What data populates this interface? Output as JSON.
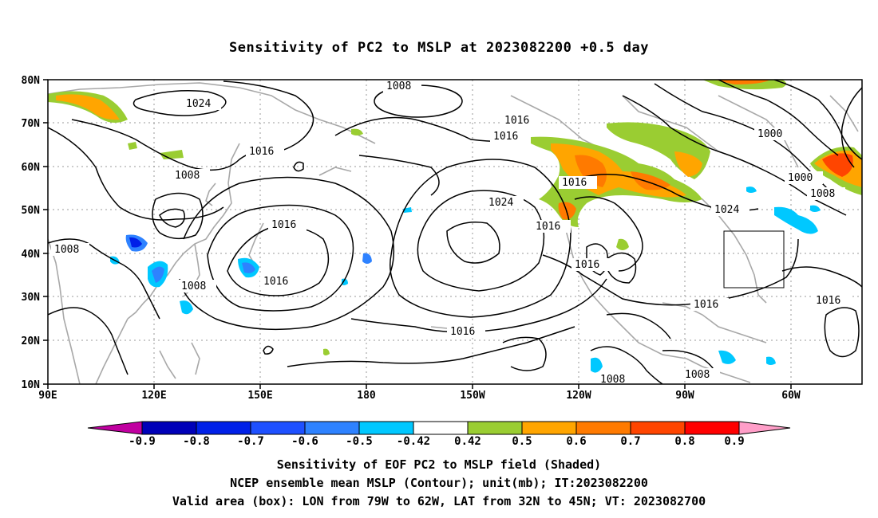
{
  "title": "Sensitivity of PC2 to MSLP at 2023082200 +0.5 day",
  "lat_labels": [
    "80N",
    "70N",
    "60N",
    "50N",
    "40N",
    "30N",
    "20N",
    "10N"
  ],
  "lon_labels": [
    "90E",
    "120E",
    "150E",
    "180",
    "150W",
    "120W",
    "90W",
    "60W"
  ],
  "contour_labels": [
    "1008",
    "1024",
    "1016",
    "1016",
    "1016",
    "1000",
    "1000",
    "1008",
    "1008",
    "1016",
    "1024",
    "1024",
    "1008",
    "1016",
    "1016",
    "1008",
    "1016",
    "1016",
    "1016",
    "1008",
    "1008",
    "1016"
  ],
  "colorbar": {
    "labels": [
      "-0.9",
      "-0.8",
      "-0.7",
      "-0.6",
      "-0.5",
      "-0.42",
      "0.42",
      "0.5",
      "0.6",
      "0.7",
      "0.8",
      "0.9"
    ],
    "colors": [
      "#c000a0",
      "#0000b8",
      "#0020e8",
      "#1e50ff",
      "#2e82ff",
      "#00c8ff",
      "#ffffff",
      "#9acd32",
      "#ffa500",
      "#ff7a00",
      "#ff4500",
      "#ff0000",
      "#ff9ec8"
    ]
  },
  "captions": [
    "Sensitivity of EOF PC2 to MSLP field (Shaded)",
    "NCEP ensemble mean MSLP (Contour); unit(mb); IT:2023082200",
    "Valid area (box): LON from 79W to 62W, LAT from 32N to 45N; VT: 2023082700"
  ],
  "colors": {
    "contour": "#000000",
    "coast": "#a8a8a8",
    "grid": "#999999"
  },
  "map_data": {
    "type": "contour-map",
    "lon_range": [
      "90E",
      "50W"
    ],
    "lat_range": [
      "10N",
      "80N"
    ],
    "valid_box": {
      "lon": [
        "79W",
        "62W"
      ],
      "lat": [
        "32N",
        "45N"
      ]
    }
  }
}
